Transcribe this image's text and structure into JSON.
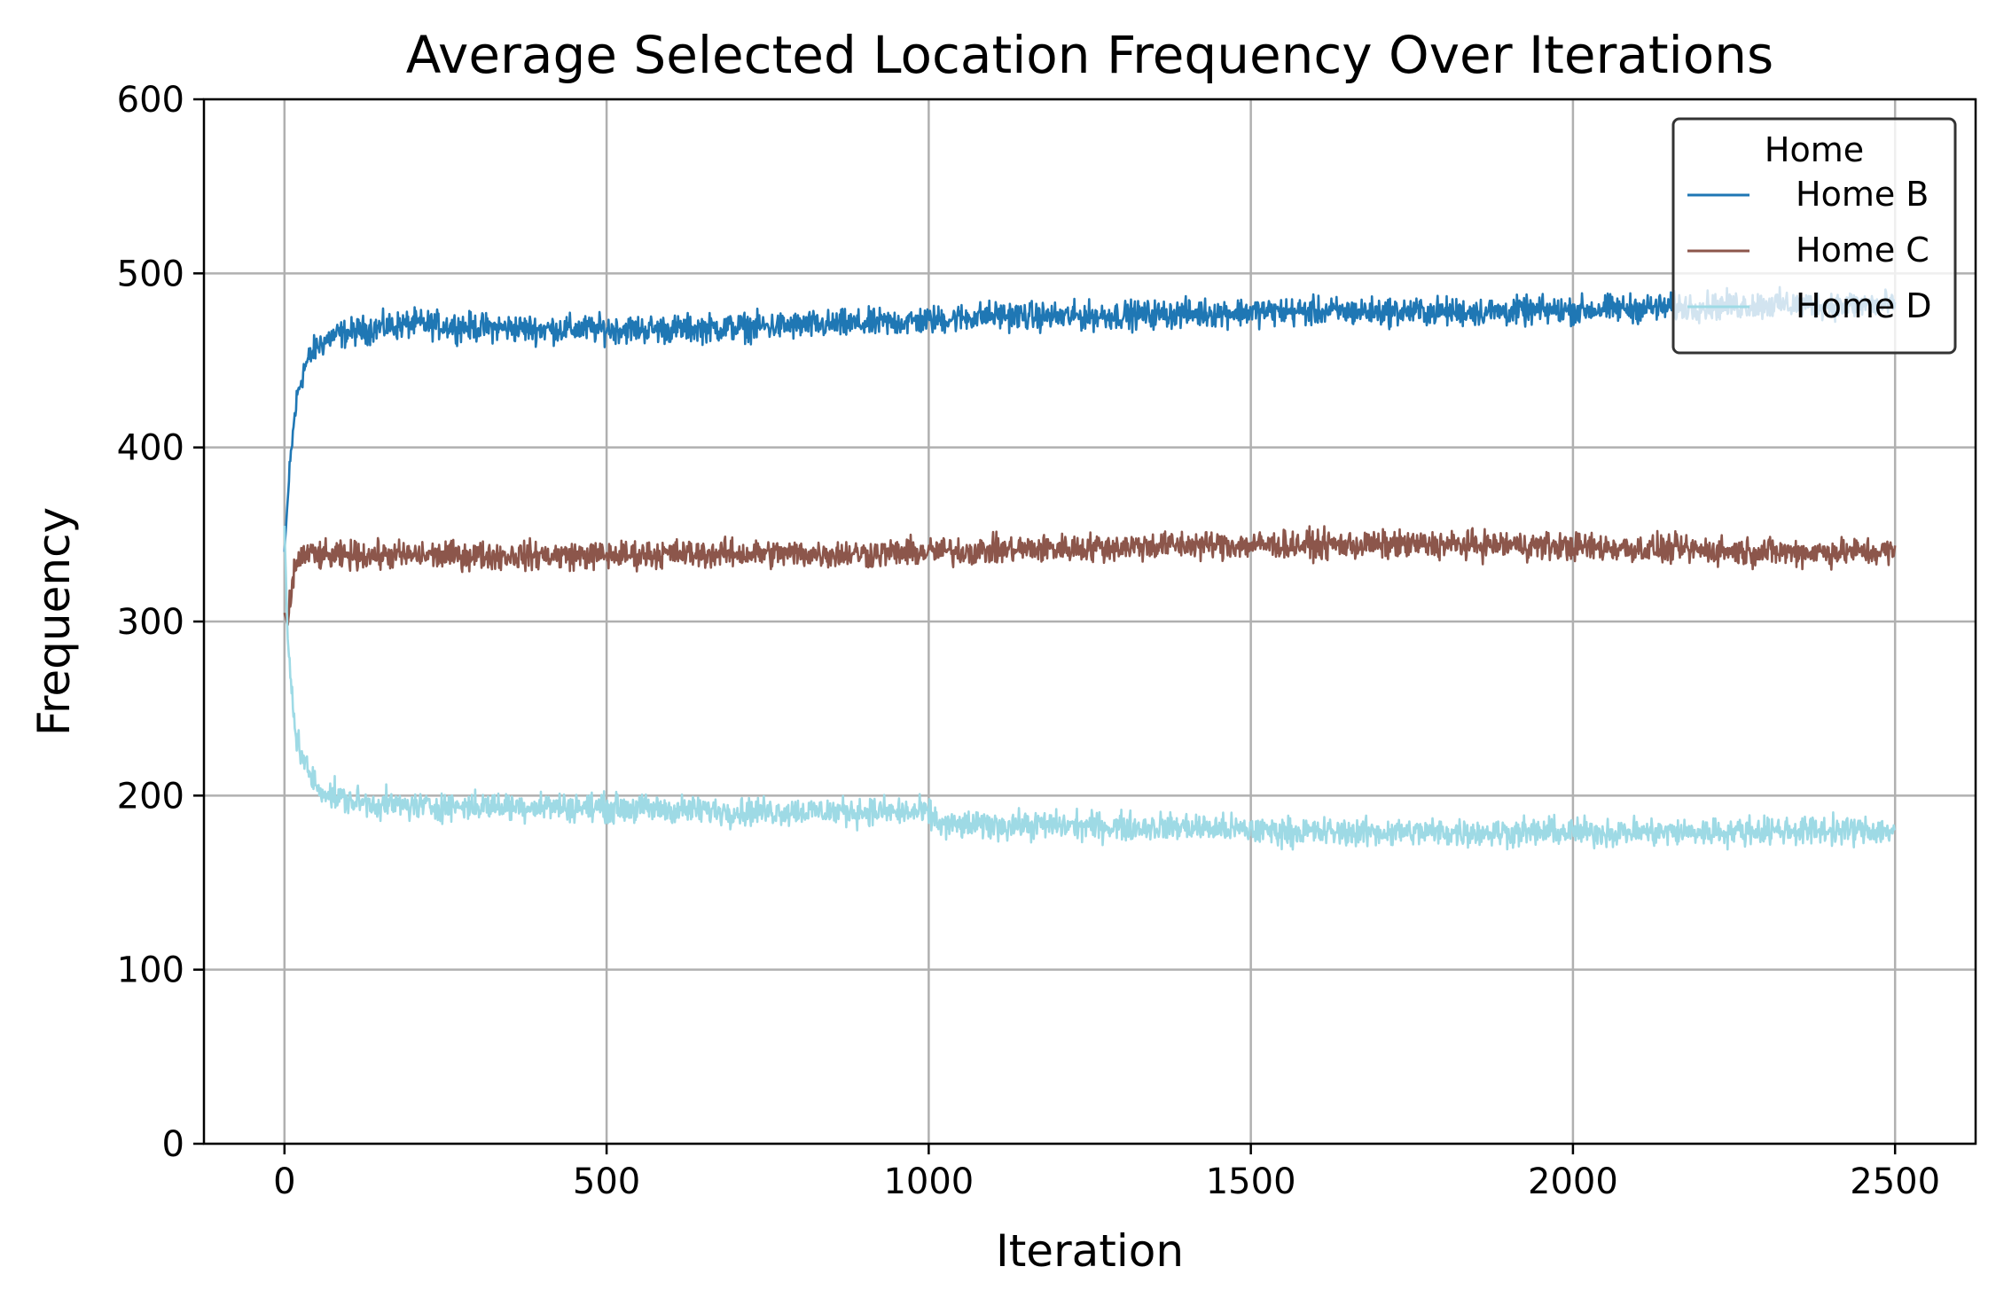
{
  "chart_data": {
    "type": "line",
    "title": "Average Selected Location Frequency Over Iterations",
    "xlabel": "Iteration",
    "ylabel": "Frequency",
    "xlim": [
      -125,
      2625
    ],
    "ylim": [
      0,
      600
    ],
    "xticks": [
      0,
      500,
      1000,
      1500,
      2000,
      2500
    ],
    "yticks": [
      0,
      100,
      200,
      300,
      400,
      500,
      600
    ],
    "grid": true,
    "legend": {
      "title": "Home",
      "placement": "top-right",
      "entries": [
        "Home B",
        "Home C",
        "Home D"
      ]
    },
    "series": [
      {
        "name": "Home B",
        "color": "#1f77b4",
        "x": [
          0,
          5,
          10,
          15,
          20,
          30,
          40,
          50,
          75,
          100,
          150,
          200,
          250,
          300,
          400,
          500,
          600,
          700,
          800,
          900,
          1000,
          1100,
          1200,
          1300,
          1400,
          1500,
          1600,
          1700,
          1800,
          1900,
          2000,
          2100,
          2200,
          2300,
          2400,
          2500
        ],
        "y": [
          340,
          370,
          395,
          415,
          430,
          445,
          452,
          458,
          464,
          466,
          469,
          471,
          470,
          469,
          468,
          468,
          468,
          469,
          470,
          471,
          473,
          476,
          475,
          476,
          477,
          478,
          478,
          478,
          478,
          478,
          479,
          480,
          481,
          482,
          482,
          482
        ],
        "noise": 4
      },
      {
        "name": "Home C",
        "color": "#8c564b",
        "x": [
          0,
          5,
          10,
          15,
          20,
          30,
          40,
          50,
          75,
          100,
          150,
          200,
          250,
          300,
          400,
          500,
          600,
          700,
          800,
          900,
          1000,
          1100,
          1200,
          1300,
          1400,
          1500,
          1600,
          1700,
          1800,
          1900,
          2000,
          2100,
          2200,
          2300,
          2400,
          2500
        ],
        "y": [
          305,
          298,
          315,
          328,
          335,
          338,
          339,
          338,
          337,
          338,
          338,
          338,
          338,
          338,
          338,
          338,
          339,
          339,
          339,
          339,
          340,
          341,
          342,
          343,
          344,
          344,
          344,
          344,
          344,
          344,
          343,
          342,
          341,
          340,
          340,
          340
        ],
        "noise": 4
      },
      {
        "name": "Home D",
        "color": "#9edae5",
        "x": [
          0,
          5,
          10,
          15,
          20,
          30,
          40,
          50,
          75,
          100,
          150,
          200,
          250,
          300,
          400,
          500,
          600,
          700,
          800,
          900,
          1000,
          1020,
          1100,
          1200,
          1300,
          1400,
          1500,
          1600,
          1700,
          1800,
          1900,
          2000,
          2100,
          2200,
          2300,
          2400,
          2500
        ],
        "y": [
          355,
          290,
          265,
          245,
          232,
          220,
          212,
          205,
          200,
          197,
          195,
          194,
          194,
          194,
          194,
          193,
          192,
          191,
          191,
          191,
          190,
          183,
          183,
          183,
          182,
          182,
          180,
          179,
          179,
          179,
          179,
          179,
          179,
          179,
          180,
          180,
          180
        ],
        "noise": 4
      }
    ]
  }
}
